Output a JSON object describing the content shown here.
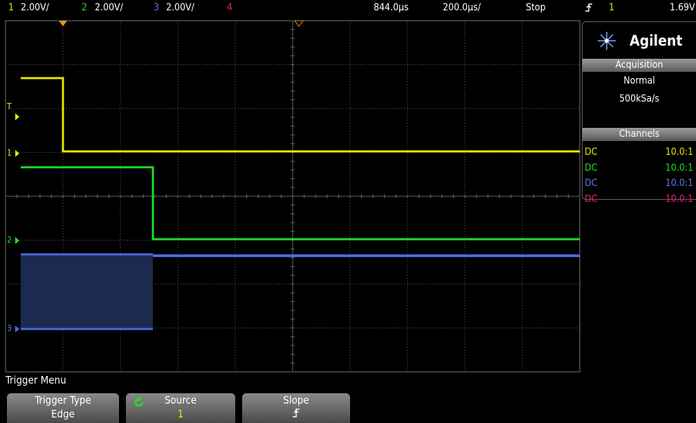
{
  "top_bar": {
    "channels": [
      {
        "number": "1",
        "scale": "2.00V/"
      },
      {
        "number": "2",
        "scale": "2.00V/"
      },
      {
        "number": "3",
        "scale": "2.00V/"
      },
      {
        "number": "4"
      }
    ],
    "delay": "844.0µs",
    "timebase": "200.0µs/",
    "status": "Stop",
    "trigger_channel": "1",
    "trigger_level": "1.69V"
  },
  "markers": {
    "trigger": "T",
    "channel_1": "1",
    "channel_2": "2",
    "channel_3": "3"
  },
  "side_panel": {
    "brand": "Agilent",
    "acquisition": {
      "title": "Acquisition",
      "mode": "Normal",
      "sample_rate": "500kSa/s"
    },
    "channels": {
      "title": "Channels",
      "rows": [
        {
          "coupling": "DC",
          "probe": "10.0:1"
        },
        {
          "coupling": "DC",
          "probe": "10.0:1"
        },
        {
          "coupling": "DC",
          "probe": "10.0:1"
        },
        {
          "coupling": "DC",
          "probe": "10.0:1"
        }
      ]
    }
  },
  "softkeys": {
    "menu_title": "Trigger Menu",
    "keys": [
      {
        "label": "Trigger Type",
        "value": "Edge"
      },
      {
        "label": "Source",
        "value": "1"
      },
      {
        "label": "Slope"
      }
    ]
  }
}
